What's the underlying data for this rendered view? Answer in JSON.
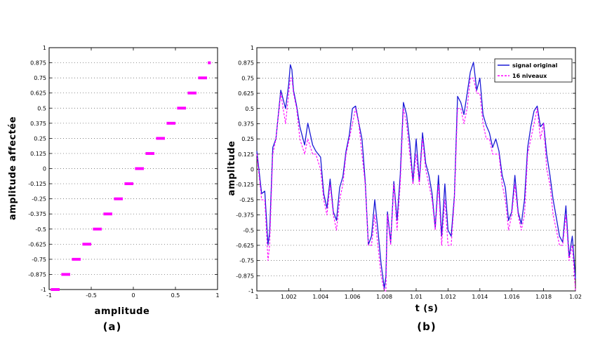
{
  "chart_data": [
    {
      "type": "scatter",
      "panel_label": "(a)",
      "xlabel": "amplitude",
      "ylabel": "amplitude affectée",
      "xlim": [
        -1,
        1
      ],
      "ylim": [
        -1,
        1
      ],
      "x_ticks": [
        "-1",
        "-0.5",
        "0",
        "0.5",
        "1"
      ],
      "y_ticks": [
        "1",
        "0.875",
        "0.75",
        "0.625",
        "0.5",
        "0.375",
        "0.25",
        "0.125",
        "0",
        "-0.125",
        "-0.25",
        "-0.375",
        "-0.5",
        "-0.625",
        "-0.75",
        "-0.875",
        "-1"
      ],
      "grid": "dotted horizontal",
      "color": "#ff00ff",
      "segments": [
        {
          "x": [
            -0.98,
            -0.875
          ],
          "y": -1
        },
        {
          "x": [
            -0.855,
            -0.75
          ],
          "y": -0.875
        },
        {
          "x": [
            -0.73,
            -0.625
          ],
          "y": -0.75
        },
        {
          "x": [
            -0.605,
            -0.5
          ],
          "y": -0.625
        },
        {
          "x": [
            -0.48,
            -0.375
          ],
          "y": -0.5
        },
        {
          "x": [
            -0.355,
            -0.25
          ],
          "y": -0.375
        },
        {
          "x": [
            -0.23,
            -0.125
          ],
          "y": -0.25
        },
        {
          "x": [
            -0.105,
            0.0
          ],
          "y": -0.125
        },
        {
          "x": [
            0.02,
            0.125
          ],
          "y": 0
        },
        {
          "x": [
            0.145,
            0.25
          ],
          "y": 0.125
        },
        {
          "x": [
            0.27,
            0.375
          ],
          "y": 0.25
        },
        {
          "x": [
            0.395,
            0.5
          ],
          "y": 0.375
        },
        {
          "x": [
            0.52,
            0.625
          ],
          "y": 0.5
        },
        {
          "x": [
            0.645,
            0.75
          ],
          "y": 0.625
        },
        {
          "x": [
            0.77,
            0.875
          ],
          "y": 0.75
        },
        {
          "x": [
            0.885,
            0.92
          ],
          "y": 0.875
        }
      ]
    },
    {
      "type": "line",
      "panel_label": "(b)",
      "xlabel": "t (s)",
      "ylabel": "amplitude",
      "xlim": [
        1,
        1.02
      ],
      "ylim": [
        -1,
        1
      ],
      "x_ticks": [
        "1",
        "1.002",
        "1.004",
        "1.006",
        "1.008",
        "1.01",
        "1.012",
        "1.014",
        "1.016",
        "1.018",
        "1.02"
      ],
      "y_ticks": [
        "1",
        "0.875",
        "0.75",
        "0.625",
        "0.5",
        "0.375",
        "0.25",
        "0.125",
        "0",
        "-0.125",
        "-0.25",
        "-0.375",
        "-0.5",
        "-0.625",
        "-0.75",
        "-0.875",
        "-1"
      ],
      "grid": "dotted horizontal",
      "legend_position": "top-right",
      "series": [
        {
          "name": "signal original",
          "color": "#1a1ad6",
          "style": "solid",
          "x": [
            1.0,
            1.0003,
            1.0005,
            1.0007,
            1.0008,
            1.001,
            1.0012,
            1.0015,
            1.0018,
            1.002,
            1.0021,
            1.0022,
            1.0023,
            1.0025,
            1.0027,
            1.003,
            1.0032,
            1.0035,
            1.0037,
            1.004,
            1.0042,
            1.0044,
            1.0046,
            1.0048,
            1.005,
            1.0052,
            1.0054,
            1.0056,
            1.0058,
            1.006,
            1.0062,
            1.0064,
            1.0066,
            1.0067,
            1.0068,
            1.007,
            1.0072,
            1.0074,
            1.0076,
            1.0078,
            1.008,
            1.0081,
            1.0082,
            1.0084,
            1.0086,
            1.0088,
            1.009,
            1.0092,
            1.0094,
            1.0096,
            1.0098,
            1.01,
            1.0102,
            1.0104,
            1.0106,
            1.0108,
            1.011,
            1.0112,
            1.0114,
            1.0116,
            1.0118,
            1.012,
            1.0122,
            1.0124,
            1.0126,
            1.0128,
            1.013,
            1.0132,
            1.0134,
            1.0136,
            1.0138,
            1.014,
            1.0142,
            1.0144,
            1.0146,
            1.0148,
            1.015,
            1.0152,
            1.0154,
            1.0156,
            1.0158,
            1.016,
            1.0162,
            1.0164,
            1.0166,
            1.0168,
            1.017,
            1.0172,
            1.0174,
            1.0176,
            1.0178,
            1.018,
            1.0182,
            1.0184,
            1.0186,
            1.0188,
            1.019,
            1.0192,
            1.0194,
            1.0196,
            1.0198,
            1.02
          ],
          "y": [
            0.15,
            -0.2,
            -0.18,
            -0.62,
            -0.52,
            0.18,
            0.25,
            0.65,
            0.5,
            0.7,
            0.86,
            0.82,
            0.65,
            0.52,
            0.35,
            0.2,
            0.38,
            0.2,
            0.15,
            0.1,
            -0.2,
            -0.32,
            -0.08,
            -0.35,
            -0.42,
            -0.15,
            -0.06,
            0.15,
            0.28,
            0.5,
            0.52,
            0.38,
            0.25,
            0.08,
            -0.1,
            -0.62,
            -0.55,
            -0.25,
            -0.5,
            -0.78,
            -0.98,
            -0.88,
            -0.35,
            -0.6,
            -0.1,
            -0.42,
            -0.05,
            0.55,
            0.45,
            0.22,
            -0.1,
            0.25,
            -0.1,
            0.3,
            0.05,
            -0.05,
            -0.2,
            -0.48,
            -0.05,
            -0.55,
            -0.12,
            -0.5,
            -0.55,
            -0.22,
            0.6,
            0.55,
            0.45,
            0.62,
            0.8,
            0.88,
            0.65,
            0.75,
            0.45,
            0.36,
            0.3,
            0.18,
            0.25,
            0.15,
            -0.05,
            -0.15,
            -0.42,
            -0.35,
            -0.05,
            -0.35,
            -0.45,
            -0.25,
            0.18,
            0.35,
            0.48,
            0.52,
            0.35,
            0.38,
            0.12,
            -0.05,
            -0.25,
            -0.4,
            -0.55,
            -0.6,
            -0.3,
            -0.72,
            -0.55,
            -0.9
          ]
        },
        {
          "name": "16 niveaux",
          "color": "#ff00ff",
          "style": "dashed",
          "x": [
            1.0,
            1.0003,
            1.0005,
            1.0007,
            1.0008,
            1.001,
            1.0012,
            1.0015,
            1.0018,
            1.002,
            1.0021,
            1.0022,
            1.0023,
            1.0025,
            1.0027,
            1.003,
            1.0032,
            1.0035,
            1.0037,
            1.004,
            1.0042,
            1.0044,
            1.0046,
            1.0048,
            1.005,
            1.0052,
            1.0054,
            1.0056,
            1.0058,
            1.006,
            1.0062,
            1.0064,
            1.0066,
            1.0067,
            1.0068,
            1.007,
            1.0072,
            1.0074,
            1.0076,
            1.0078,
            1.008,
            1.0081,
            1.0082,
            1.0084,
            1.0086,
            1.0088,
            1.009,
            1.0092,
            1.0094,
            1.0096,
            1.0098,
            1.01,
            1.0102,
            1.0104,
            1.0106,
            1.0108,
            1.011,
            1.0112,
            1.0114,
            1.0116,
            1.0118,
            1.012,
            1.0122,
            1.0124,
            1.0126,
            1.0128,
            1.013,
            1.0132,
            1.0134,
            1.0136,
            1.0138,
            1.014,
            1.0142,
            1.0144,
            1.0146,
            1.0148,
            1.015,
            1.0152,
            1.0154,
            1.0156,
            1.0158,
            1.016,
            1.0162,
            1.0164,
            1.0166,
            1.0168,
            1.017,
            1.0172,
            1.0174,
            1.0176,
            1.0178,
            1.018,
            1.0182,
            1.0184,
            1.0186,
            1.0188,
            1.019,
            1.0192,
            1.0194,
            1.0196,
            1.0198,
            1.02
          ],
          "y": [
            0.125,
            -0.25,
            -0.25,
            -0.75,
            -0.625,
            0.125,
            0.25,
            0.625,
            0.375,
            0.625,
            0.75,
            0.75,
            0.625,
            0.5,
            0.25,
            0.125,
            0.25,
            0.125,
            0.125,
            0.0,
            -0.25,
            -0.375,
            -0.125,
            -0.375,
            -0.5,
            -0.25,
            -0.125,
            0.125,
            0.25,
            0.375,
            0.5,
            0.375,
            0.125,
            0.0,
            -0.125,
            -0.625,
            -0.625,
            -0.375,
            -0.625,
            -0.875,
            -1.0,
            -1.0,
            -0.375,
            -0.625,
            -0.125,
            -0.5,
            -0.125,
            0.5,
            0.375,
            0.125,
            -0.125,
            0.125,
            -0.125,
            0.25,
            0.0,
            -0.125,
            -0.25,
            -0.5,
            -0.125,
            -0.625,
            -0.25,
            -0.625,
            -0.625,
            -0.25,
            0.5,
            0.5,
            0.375,
            0.5,
            0.75,
            0.75,
            0.625,
            0.625,
            0.375,
            0.25,
            0.25,
            0.125,
            0.125,
            0.125,
            -0.125,
            -0.25,
            -0.5,
            -0.375,
            -0.125,
            -0.375,
            -0.5,
            -0.375,
            0.125,
            0.25,
            0.375,
            0.5,
            0.25,
            0.375,
            0.0,
            -0.125,
            -0.375,
            -0.5,
            -0.625,
            -0.625,
            -0.375,
            -0.75,
            -0.625,
            -1.0
          ]
        }
      ]
    }
  ]
}
